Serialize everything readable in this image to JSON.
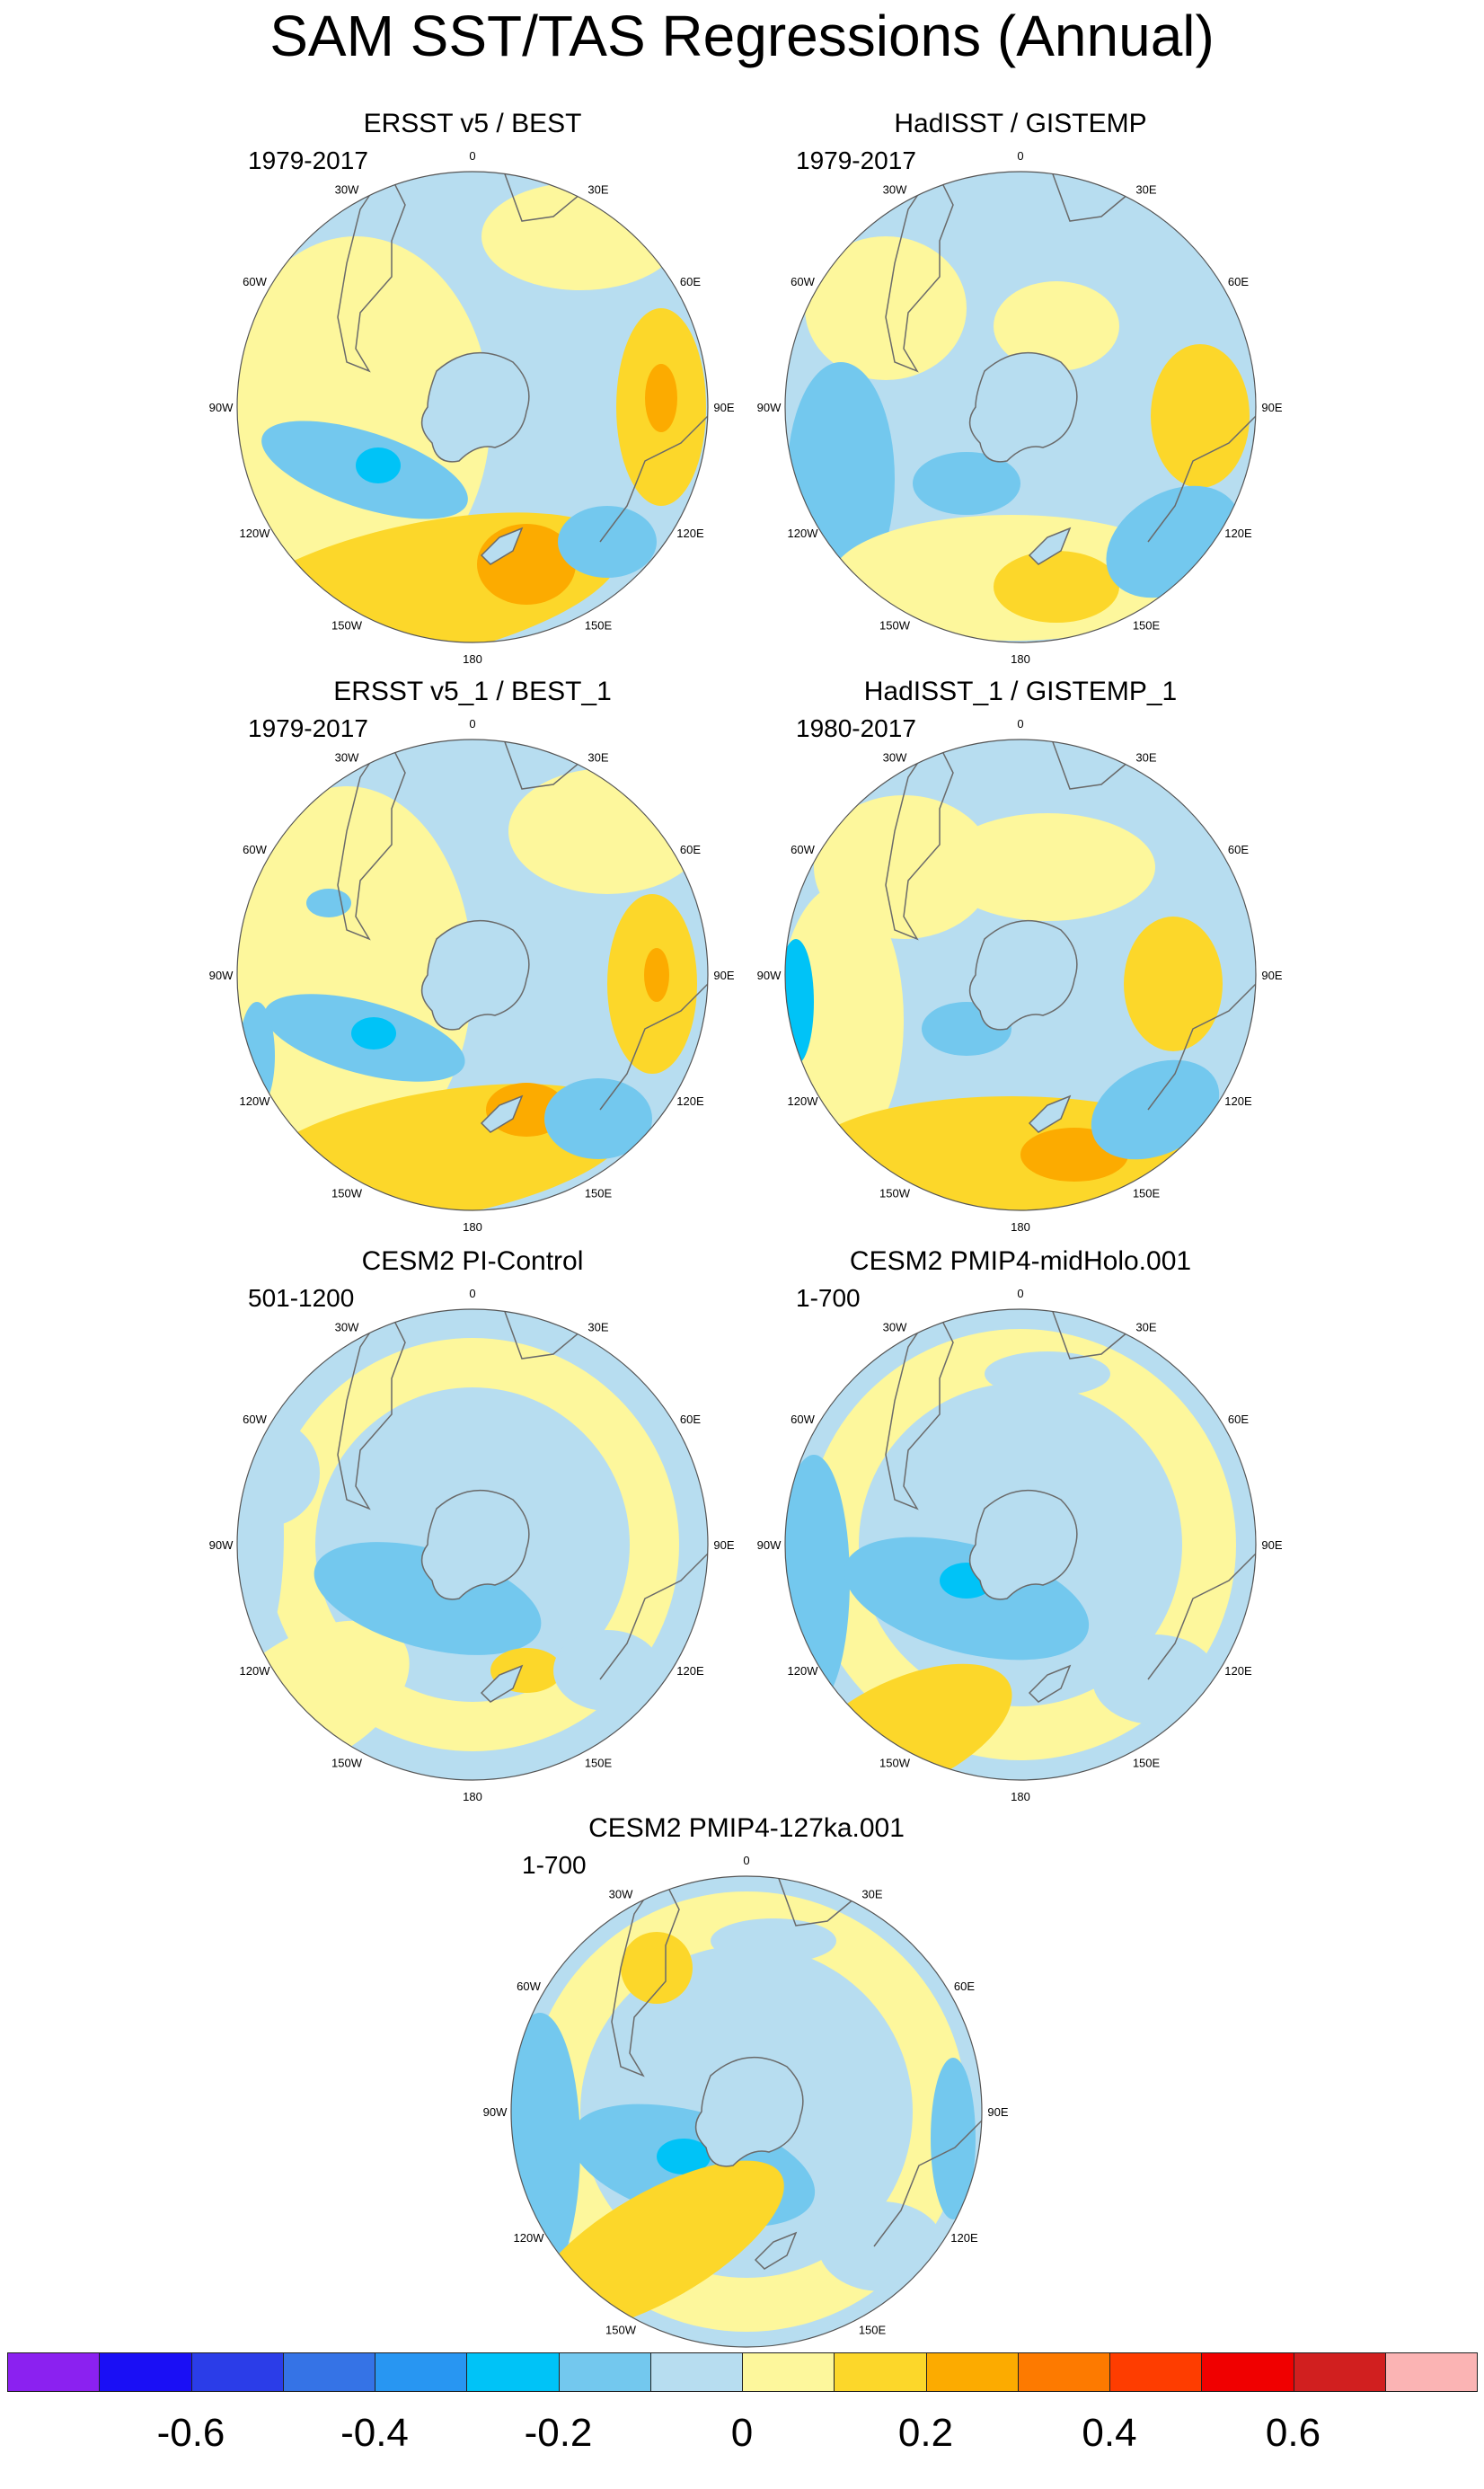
{
  "title": "SAM SST/TAS Regressions (Annual)",
  "colors": {
    "map_base": "#b7ddf0",
    "coast": "#6a6a6a",
    "rim": "#555555"
  },
  "lon_labels": [
    "0",
    "30E",
    "60E",
    "90E",
    "120E",
    "150E",
    "180",
    "150W",
    "120W",
    "90W",
    "60W",
    "30W"
  ],
  "panels": [
    {
      "title": "ERSST v5 / BEST",
      "period": "1979-2017"
    },
    {
      "title": "HadISST / GISTEMP",
      "period": "1979-2017"
    },
    {
      "title": "ERSST v5_1 / BEST_1",
      "period": "1979-2017"
    },
    {
      "title": "HadISST_1 / GISTEMP_1",
      "period": "1980-2017"
    },
    {
      "title": "CESM2 PI-Control",
      "period": "501-1200"
    },
    {
      "title": "CESM2 PMIP4-midHolo.001",
      "period": "1-700"
    },
    {
      "title": "CESM2 PMIP4-127ka.001",
      "period": "1-700"
    }
  ],
  "colorbar": {
    "colors": [
      "#8b21f0",
      "#1a0ff5",
      "#2b3de8",
      "#3573e6",
      "#2896f2",
      "#00c3f7",
      "#73c8ee",
      "#b7ddf0",
      "#fdf79c",
      "#fcd72a",
      "#fcab00",
      "#fd7a00",
      "#fe3d00",
      "#f00000",
      "#d11f1f",
      "#fbb4b4"
    ],
    "labels": [
      "-0.6",
      "-0.4",
      "-0.2",
      "0",
      "0.2",
      "0.4",
      "0.6"
    ]
  }
}
